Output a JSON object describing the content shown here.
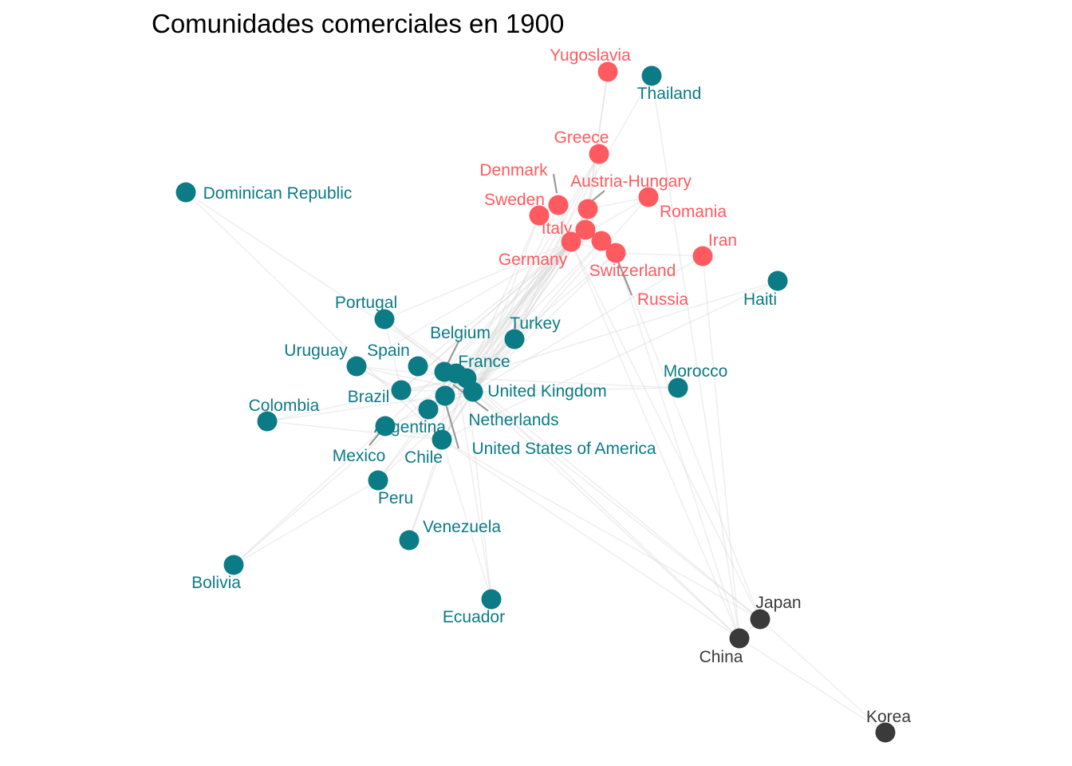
{
  "title": "Comunidades comerciales en 1900",
  "colors": {
    "europe": "#ff5a5f",
    "america": "#0b7b85",
    "asia": "#3a3a3a",
    "edge": "#d0d0d0"
  },
  "nodes": [
    {
      "id": "yugoslavia",
      "label": "Yugoslavia",
      "group": "europe"
    },
    {
      "id": "greece",
      "label": "Greece",
      "group": "europe"
    },
    {
      "id": "denmark",
      "label": "Denmark",
      "group": "europe"
    },
    {
      "id": "austria-hungary",
      "label": "Austria-Hungary",
      "group": "europe"
    },
    {
      "id": "sweden",
      "label": "Sweden",
      "group": "europe"
    },
    {
      "id": "romania",
      "label": "Romania",
      "group": "europe"
    },
    {
      "id": "italy",
      "label": "Italy",
      "group": "europe"
    },
    {
      "id": "germany",
      "label": "Germany",
      "group": "europe"
    },
    {
      "id": "iran",
      "label": "Iran",
      "group": "europe"
    },
    {
      "id": "switzerland",
      "label": "Switzerland",
      "group": "europe"
    },
    {
      "id": "russia",
      "label": "Russia",
      "group": "europe"
    },
    {
      "id": "thailand",
      "label": "Thailand",
      "group": "america"
    },
    {
      "id": "dominican-republic",
      "label": "Dominican Republic",
      "group": "america"
    },
    {
      "id": "haiti",
      "label": "Haiti",
      "group": "america"
    },
    {
      "id": "portugal",
      "label": "Portugal",
      "group": "america"
    },
    {
      "id": "turkey",
      "label": "Turkey",
      "group": "america"
    },
    {
      "id": "belgium",
      "label": "Belgium",
      "group": "america"
    },
    {
      "id": "uruguay",
      "label": "Uruguay",
      "group": "america"
    },
    {
      "id": "spain",
      "label": "Spain",
      "group": "america"
    },
    {
      "id": "france",
      "label": "France",
      "group": "america"
    },
    {
      "id": "morocco",
      "label": "Morocco",
      "group": "america"
    },
    {
      "id": "brazil",
      "label": "Brazil",
      "group": "america"
    },
    {
      "id": "united-kingdom",
      "label": "United Kingdom",
      "group": "america"
    },
    {
      "id": "colombia",
      "label": "Colombia",
      "group": "america"
    },
    {
      "id": "netherlands",
      "label": "Netherlands",
      "group": "america"
    },
    {
      "id": "argentina",
      "label": "Argentina",
      "group": "america"
    },
    {
      "id": "united-states",
      "label": "United States of America",
      "group": "america"
    },
    {
      "id": "mexico",
      "label": "Mexico",
      "group": "america"
    },
    {
      "id": "chile",
      "label": "Chile",
      "group": "america"
    },
    {
      "id": "peru",
      "label": "Peru",
      "group": "america"
    },
    {
      "id": "venezuela",
      "label": "Venezuela",
      "group": "america"
    },
    {
      "id": "bolivia",
      "label": "Bolivia",
      "group": "america"
    },
    {
      "id": "ecuador",
      "label": "Ecuador",
      "group": "america"
    },
    {
      "id": "japan",
      "label": "Japan",
      "group": "asia"
    },
    {
      "id": "china",
      "label": "China",
      "group": "asia"
    },
    {
      "id": "korea",
      "label": "Korea",
      "group": "asia"
    }
  ],
  "edges": [
    [
      "yugoslavia",
      "austria-hungary"
    ],
    [
      "yugoslavia",
      "italy"
    ],
    [
      "thailand",
      "china"
    ],
    [
      "thailand",
      "united-kingdom"
    ],
    [
      "greece",
      "italy"
    ],
    [
      "greece",
      "united-kingdom"
    ],
    [
      "greece",
      "france"
    ],
    [
      "greece",
      "turkey"
    ],
    [
      "denmark",
      "germany"
    ],
    [
      "denmark",
      "united-kingdom"
    ],
    [
      "denmark",
      "sweden"
    ],
    [
      "sweden",
      "germany"
    ],
    [
      "sweden",
      "united-kingdom"
    ],
    [
      "sweden",
      "france"
    ],
    [
      "austria-hungary",
      "germany"
    ],
    [
      "austria-hungary",
      "italy"
    ],
    [
      "austria-hungary",
      "united-kingdom"
    ],
    [
      "austria-hungary",
      "france"
    ],
    [
      "romania",
      "austria-hungary"
    ],
    [
      "romania",
      "germany"
    ],
    [
      "romania",
      "united-kingdom"
    ],
    [
      "italy",
      "germany"
    ],
    [
      "italy",
      "switzerland"
    ],
    [
      "italy",
      "united-kingdom"
    ],
    [
      "italy",
      "france"
    ],
    [
      "italy",
      "argentina"
    ],
    [
      "italy",
      "united-states"
    ],
    [
      "italy",
      "brazil"
    ],
    [
      "germany",
      "united-kingdom"
    ],
    [
      "germany",
      "france"
    ],
    [
      "germany",
      "united-states"
    ],
    [
      "germany",
      "netherlands"
    ],
    [
      "germany",
      "belgium"
    ],
    [
      "germany",
      "argentina"
    ],
    [
      "germany",
      "brazil"
    ],
    [
      "germany",
      "chile"
    ],
    [
      "germany",
      "spain"
    ],
    [
      "germany",
      "uruguay"
    ],
    [
      "germany",
      "mexico"
    ],
    [
      "germany",
      "peru"
    ],
    [
      "germany",
      "portugal"
    ],
    [
      "germany",
      "japan"
    ],
    [
      "germany",
      "china"
    ],
    [
      "germany",
      "russia"
    ],
    [
      "germany",
      "switzerland"
    ],
    [
      "russia",
      "united-kingdom"
    ],
    [
      "russia",
      "france"
    ],
    [
      "russia",
      "china"
    ],
    [
      "russia",
      "japan"
    ],
    [
      "iran",
      "russia"
    ],
    [
      "iran",
      "united-kingdom"
    ],
    [
      "iran",
      "china"
    ],
    [
      "switzerland",
      "france"
    ],
    [
      "switzerland",
      "united-kingdom"
    ],
    [
      "dominican-republic",
      "united-states"
    ],
    [
      "dominican-republic",
      "france"
    ],
    [
      "haiti",
      "united-states"
    ],
    [
      "haiti",
      "france"
    ],
    [
      "portugal",
      "united-kingdom"
    ],
    [
      "portugal",
      "brazil"
    ],
    [
      "portugal",
      "france"
    ],
    [
      "turkey",
      "united-kingdom"
    ],
    [
      "turkey",
      "france"
    ],
    [
      "turkey",
      "austria-hungary"
    ],
    [
      "belgium",
      "france"
    ],
    [
      "belgium",
      "united-kingdom"
    ],
    [
      "belgium",
      "netherlands"
    ],
    [
      "uruguay",
      "united-kingdom"
    ],
    [
      "uruguay",
      "france"
    ],
    [
      "uruguay",
      "argentina"
    ],
    [
      "uruguay",
      "brazil"
    ],
    [
      "spain",
      "united-kingdom"
    ],
    [
      "spain",
      "france"
    ],
    [
      "france",
      "united-kingdom"
    ],
    [
      "france",
      "argentina"
    ],
    [
      "france",
      "brazil"
    ],
    [
      "france",
      "united-states"
    ],
    [
      "morocco",
      "united-kingdom"
    ],
    [
      "morocco",
      "france"
    ],
    [
      "brazil",
      "united-kingdom"
    ],
    [
      "brazil",
      "united-states"
    ],
    [
      "united-kingdom",
      "united-states"
    ],
    [
      "united-kingdom",
      "argentina"
    ],
    [
      "united-kingdom",
      "chile"
    ],
    [
      "united-kingdom",
      "netherlands"
    ],
    [
      "united-kingdom",
      "japan"
    ],
    [
      "united-kingdom",
      "china"
    ],
    [
      "united-kingdom",
      "mexico"
    ],
    [
      "united-kingdom",
      "colombia"
    ],
    [
      "united-kingdom",
      "peru"
    ],
    [
      "colombia",
      "united-states"
    ],
    [
      "colombia",
      "france"
    ],
    [
      "netherlands",
      "united-states"
    ],
    [
      "argentina",
      "united-states"
    ],
    [
      "united-states",
      "mexico"
    ],
    [
      "united-states",
      "japan"
    ],
    [
      "united-states",
      "china"
    ],
    [
      "united-states",
      "chile"
    ],
    [
      "united-states",
      "venezuela"
    ],
    [
      "united-states",
      "ecuador"
    ],
    [
      "mexico",
      "bolivia"
    ],
    [
      "chile",
      "bolivia"
    ],
    [
      "chile",
      "peru"
    ],
    [
      "peru",
      "bolivia"
    ],
    [
      "venezuela",
      "france"
    ],
    [
      "ecuador",
      "france"
    ],
    [
      "ecuador",
      "chile"
    ],
    [
      "japan",
      "china"
    ],
    [
      "japan",
      "korea"
    ],
    [
      "china",
      "korea"
    ],
    [
      "france",
      "japan"
    ],
    [
      "france",
      "china"
    ]
  ]
}
